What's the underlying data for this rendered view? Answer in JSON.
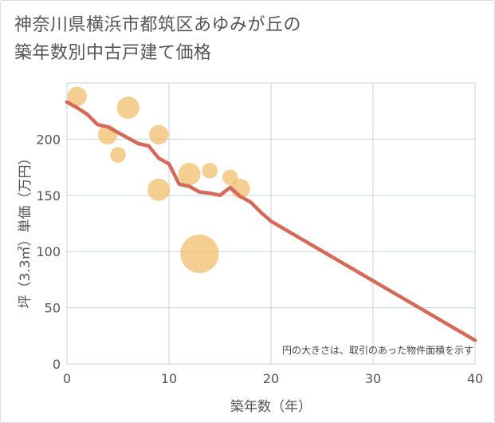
{
  "chart_data": {
    "type": "scatter+line",
    "title_lines": [
      "神奈川県横浜市都筑区あゆみが丘の",
      "築年数別中古戸建て価格"
    ],
    "xlabel": "築年数（年）",
    "ylabel": "坪（3.3㎡）単価（万円）",
    "xlim": [
      0,
      40
    ],
    "ylim": [
      0,
      250
    ],
    "x_ticks": [
      0,
      10,
      20,
      30,
      40
    ],
    "y_ticks": [
      0,
      50,
      100,
      150,
      200
    ],
    "note": "円の大きさは、取引のあった物件面積を示す",
    "colors": {
      "bubble": "#f2bd6e",
      "line": "#d46a5a",
      "grid": "#c9d3e0"
    },
    "scatter": [
      {
        "x": 1,
        "y": 238,
        "size": 2
      },
      {
        "x": 4,
        "y": 204,
        "size": 2
      },
      {
        "x": 5,
        "y": 186,
        "size": 1
      },
      {
        "x": 6,
        "y": 228,
        "size": 3
      },
      {
        "x": 9,
        "y": 204,
        "size": 2
      },
      {
        "x": 9,
        "y": 155,
        "size": 3
      },
      {
        "x": 12,
        "y": 169,
        "size": 3
      },
      {
        "x": 13,
        "y": 98,
        "size": 12
      },
      {
        "x": 14,
        "y": 172,
        "size": 1
      },
      {
        "x": 16,
        "y": 166,
        "size": 1
      },
      {
        "x": 17,
        "y": 156,
        "size": 2
      }
    ],
    "line": {
      "name": "trend",
      "x": [
        0,
        1,
        2,
        3,
        4,
        5,
        6,
        7,
        8,
        9,
        10,
        11,
        12,
        13,
        14,
        15,
        16,
        17,
        18,
        19,
        20,
        30,
        40
      ],
      "y": [
        233,
        228,
        222,
        213,
        211,
        206,
        201,
        196,
        194,
        183,
        178,
        160,
        158,
        153,
        152,
        150,
        157,
        149,
        144,
        135,
        127,
        74,
        21
      ]
    }
  }
}
